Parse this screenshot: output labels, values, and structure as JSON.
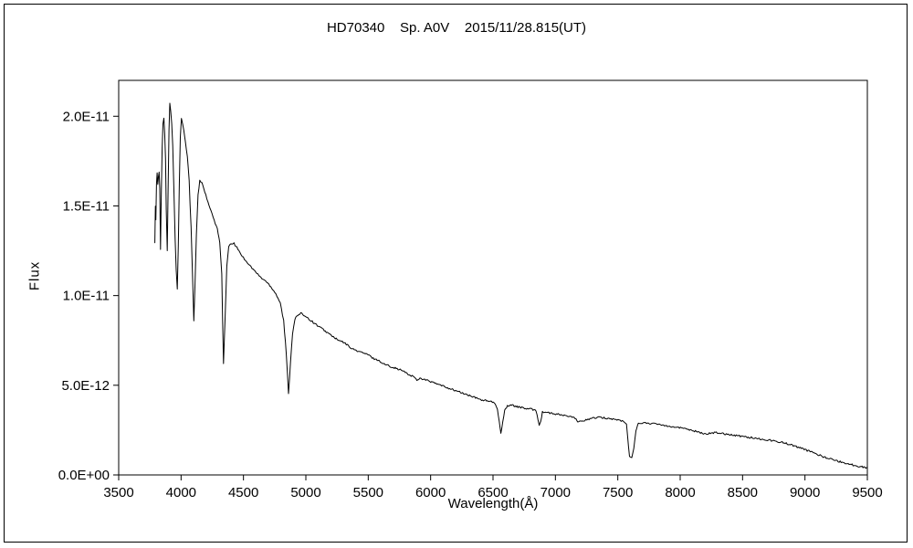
{
  "chart_data": {
    "type": "line",
    "title": "HD70340    Sp. A0V    2015/11/28.815(UT)",
    "xlabel": "Wavelength(Å)",
    "ylabel": "Flux",
    "xlim": [
      3500,
      9500
    ],
    "ylim": [
      0,
      2.2e-11
    ],
    "grid": false,
    "legend": "none",
    "line_color": "#000000",
    "background_color": "#ffffff",
    "x_ticks": [
      3500,
      4000,
      4500,
      5000,
      5500,
      6000,
      6500,
      7000,
      7500,
      8000,
      8500,
      9000,
      9500
    ],
    "y_ticks": [
      [
        0,
        "0.0E+00"
      ],
      [
        5,
        "5.0E-12"
      ],
      [
        10,
        "1.0E-11"
      ],
      [
        15,
        "1.5E-11"
      ],
      [
        20,
        "2.0E-11"
      ]
    ],
    "flux_scale": 1e-12,
    "noise_amplitude": 0.05,
    "notable_features": [
      {
        "wavelength": 3835,
        "name": "H9 absorption"
      },
      {
        "wavelength": 3889,
        "name": "H8 absorption"
      },
      {
        "wavelength": 3970,
        "name": "H-epsilon absorption"
      },
      {
        "wavelength": 4102,
        "name": "H-delta absorption"
      },
      {
        "wavelength": 4340,
        "name": "H-gamma absorption"
      },
      {
        "wavelength": 4861,
        "name": "H-beta absorption"
      },
      {
        "wavelength": 6563,
        "name": "H-alpha absorption"
      },
      {
        "wavelength": 6870,
        "name": "telluric O2 B-band"
      },
      {
        "wavelength": 7594,
        "name": "telluric O2 A-band"
      }
    ],
    "points": [
      [
        3790,
        13.0
      ],
      [
        3794,
        15.0
      ],
      [
        3798,
        14.2
      ],
      [
        3803,
        16.2
      ],
      [
        3808,
        16.8
      ],
      [
        3813,
        16.2
      ],
      [
        3818,
        16.6
      ],
      [
        3824,
        16.9
      ],
      [
        3829,
        16.0
      ],
      [
        3835,
        12.6
      ],
      [
        3841,
        15.5
      ],
      [
        3848,
        18.2
      ],
      [
        3855,
        19.6
      ],
      [
        3862,
        19.9
      ],
      [
        3869,
        19.0
      ],
      [
        3875,
        17.6
      ],
      [
        3881,
        14.8
      ],
      [
        3889,
        12.5
      ],
      [
        3896,
        15.8
      ],
      [
        3903,
        19.2
      ],
      [
        3910,
        20.7
      ],
      [
        3917,
        20.3
      ],
      [
        3925,
        19.6
      ],
      [
        3933,
        18.4
      ],
      [
        3942,
        16.0
      ],
      [
        3952,
        13.2
      ],
      [
        3961,
        11.4
      ],
      [
        3970,
        10.4
      ],
      [
        3978,
        12.8
      ],
      [
        3986,
        16.2
      ],
      [
        3994,
        18.8
      ],
      [
        4003,
        19.9
      ],
      [
        4012,
        19.6
      ],
      [
        4022,
        19.2
      ],
      [
        4035,
        18.6
      ],
      [
        4050,
        17.8
      ],
      [
        4065,
        16.4
      ],
      [
        4080,
        13.8
      ],
      [
        4091,
        11.2
      ],
      [
        4102,
        8.6
      ],
      [
        4112,
        10.6
      ],
      [
        4123,
        13.4
      ],
      [
        4136,
        15.6
      ],
      [
        4150,
        16.4
      ],
      [
        4168,
        16.3
      ],
      [
        4190,
        15.8
      ],
      [
        4215,
        15.2
      ],
      [
        4240,
        14.7
      ],
      [
        4265,
        14.2
      ],
      [
        4290,
        13.7
      ],
      [
        4310,
        13.0
      ],
      [
        4326,
        11.2
      ],
      [
        4340,
        6.2
      ],
      [
        4353,
        8.8
      ],
      [
        4366,
        11.6
      ],
      [
        4382,
        12.7
      ],
      [
        4400,
        12.9
      ],
      [
        4425,
        12.9
      ],
      [
        4455,
        12.6
      ],
      [
        4490,
        12.2
      ],
      [
        4525,
        11.9
      ],
      [
        4560,
        11.6
      ],
      [
        4600,
        11.3
      ],
      [
        4640,
        11.0
      ],
      [
        4680,
        10.8
      ],
      [
        4720,
        10.5
      ],
      [
        4760,
        10.1
      ],
      [
        4795,
        9.6
      ],
      [
        4822,
        8.6
      ],
      [
        4843,
        6.8
      ],
      [
        4861,
        4.5
      ],
      [
        4877,
        6.3
      ],
      [
        4893,
        7.9
      ],
      [
        4912,
        8.7
      ],
      [
        4935,
        8.9
      ],
      [
        4960,
        9.0
      ],
      [
        4990,
        8.9
      ],
      [
        5025,
        8.7
      ],
      [
        5060,
        8.5
      ],
      [
        5100,
        8.3
      ],
      [
        5140,
        8.1
      ],
      [
        5180,
        7.9
      ],
      [
        5220,
        7.7
      ],
      [
        5260,
        7.5
      ],
      [
        5300,
        7.4
      ],
      [
        5340,
        7.2
      ],
      [
        5380,
        7.0
      ],
      [
        5420,
        6.9
      ],
      [
        5460,
        6.8
      ],
      [
        5500,
        6.7
      ],
      [
        5540,
        6.5
      ],
      [
        5580,
        6.4
      ],
      [
        5620,
        6.2
      ],
      [
        5660,
        6.1
      ],
      [
        5700,
        6.0
      ],
      [
        5740,
        5.9
      ],
      [
        5780,
        5.8
      ],
      [
        5820,
        5.6
      ],
      [
        5860,
        5.5
      ],
      [
        5890,
        5.3
      ],
      [
        5920,
        5.4
      ],
      [
        5960,
        5.3
      ],
      [
        6000,
        5.2
      ],
      [
        6040,
        5.1
      ],
      [
        6080,
        5.0
      ],
      [
        6120,
        4.9
      ],
      [
        6160,
        4.8
      ],
      [
        6200,
        4.7
      ],
      [
        6240,
        4.6
      ],
      [
        6280,
        4.5
      ],
      [
        6320,
        4.4
      ],
      [
        6360,
        4.3
      ],
      [
        6400,
        4.2
      ],
      [
        6440,
        4.15
      ],
      [
        6480,
        4.1
      ],
      [
        6510,
        4.0
      ],
      [
        6535,
        3.7
      ],
      [
        6550,
        3.0
      ],
      [
        6563,
        2.3
      ],
      [
        6578,
        3.0
      ],
      [
        6594,
        3.6
      ],
      [
        6615,
        3.85
      ],
      [
        6640,
        3.9
      ],
      [
        6670,
        3.85
      ],
      [
        6700,
        3.8
      ],
      [
        6730,
        3.75
      ],
      [
        6760,
        3.7
      ],
      [
        6790,
        3.68
      ],
      [
        6820,
        3.65
      ],
      [
        6845,
        3.6
      ],
      [
        6860,
        3.1
      ],
      [
        6870,
        2.8
      ],
      [
        6882,
        3.0
      ],
      [
        6896,
        3.5
      ],
      [
        6925,
        3.5
      ],
      [
        6955,
        3.45
      ],
      [
        6985,
        3.4
      ],
      [
        7015,
        3.38
      ],
      [
        7045,
        3.35
      ],
      [
        7080,
        3.3
      ],
      [
        7115,
        3.25
      ],
      [
        7150,
        3.18
      ],
      [
        7180,
        3.0
      ],
      [
        7205,
        2.95
      ],
      [
        7235,
        3.05
      ],
      [
        7270,
        3.12
      ],
      [
        7310,
        3.18
      ],
      [
        7350,
        3.2
      ],
      [
        7390,
        3.18
      ],
      [
        7430,
        3.15
      ],
      [
        7470,
        3.1
      ],
      [
        7510,
        3.05
      ],
      [
        7545,
        3.0
      ],
      [
        7570,
        2.8
      ],
      [
        7594,
        1.0
      ],
      [
        7612,
        0.95
      ],
      [
        7628,
        1.5
      ],
      [
        7645,
        2.5
      ],
      [
        7665,
        2.85
      ],
      [
        7695,
        2.9
      ],
      [
        7730,
        2.9
      ],
      [
        7770,
        2.87
      ],
      [
        7810,
        2.83
      ],
      [
        7850,
        2.8
      ],
      [
        7890,
        2.75
      ],
      [
        7930,
        2.7
      ],
      [
        7970,
        2.66
      ],
      [
        8010,
        2.62
      ],
      [
        8050,
        2.58
      ],
      [
        8090,
        2.5
      ],
      [
        8130,
        2.42
      ],
      [
        8170,
        2.33
      ],
      [
        8210,
        2.3
      ],
      [
        8250,
        2.34
      ],
      [
        8290,
        2.36
      ],
      [
        8330,
        2.33
      ],
      [
        8370,
        2.28
      ],
      [
        8410,
        2.24
      ],
      [
        8450,
        2.2
      ],
      [
        8490,
        2.16
      ],
      [
        8530,
        2.12
      ],
      [
        8570,
        2.08
      ],
      [
        8610,
        2.04
      ],
      [
        8650,
        2.0
      ],
      [
        8690,
        1.96
      ],
      [
        8730,
        1.92
      ],
      [
        8770,
        1.88
      ],
      [
        8810,
        1.83
      ],
      [
        8850,
        1.76
      ],
      [
        8890,
        1.68
      ],
      [
        8930,
        1.58
      ],
      [
        8970,
        1.48
      ],
      [
        9010,
        1.38
      ],
      [
        9050,
        1.3
      ],
      [
        9090,
        1.18
      ],
      [
        9130,
        1.06
      ],
      [
        9170,
        0.96
      ],
      [
        9210,
        0.88
      ],
      [
        9250,
        0.8
      ],
      [
        9290,
        0.72
      ],
      [
        9330,
        0.66
      ],
      [
        9370,
        0.58
      ],
      [
        9410,
        0.52
      ],
      [
        9450,
        0.46
      ],
      [
        9480,
        0.42
      ],
      [
        9500,
        0.38
      ]
    ]
  }
}
